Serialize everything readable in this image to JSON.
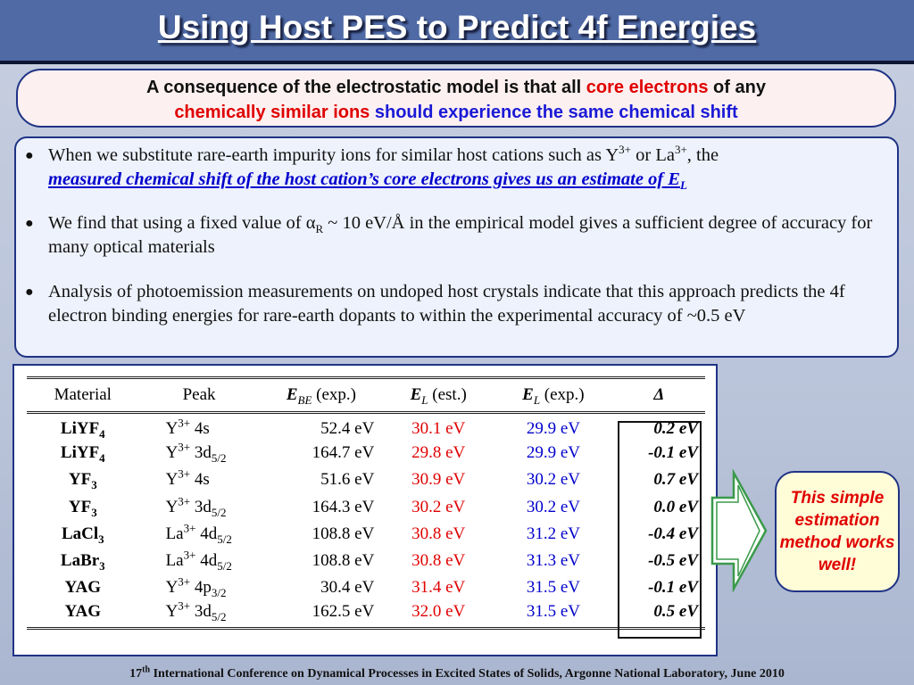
{
  "title": "Using Host PES to Predict 4f Energies",
  "callout": {
    "p1": "A consequence of the electrostatic model is that all ",
    "p2": "core electrons",
    "p3": " of any",
    "p4": "chemically similar ions",
    "p5": " should experience the same chemical shift"
  },
  "bullets": {
    "b1_t1": "When we substitute rare-earth impurity ions for similar host cations such as Y",
    "b1_sup1": "3+",
    "b1_t2": " or La",
    "b1_sup2": "3+",
    "b1_t3": ", the",
    "b1_emph": "measured chemical shift of the host cation’s core electrons gives us an estimate of E",
    "b1_emph_sub": "L",
    "b2_t1": "We find that using a fixed value of ",
    "b2_alpha": "α",
    "b2_sub": "R",
    "b2_t2": " ~ 10 eV/Å in the empirical model gives a sufficient degree of accuracy for many optical materials",
    "b3": "Analysis of photoemission measurements on undoped host crystals indicate that this approach predicts the 4f electron binding energies for rare-earth dopants to within the experimental accuracy of ~0.5 eV"
  },
  "table": {
    "headers": {
      "material": "Material",
      "peak": "Peak",
      "ebe_sym": "E",
      "ebe_sub": "BE",
      "ebe_rest": " (exp.)",
      "el_est_sym": "E",
      "el_est_sub": "L",
      "el_est_rest": " (est.)",
      "el_exp_sym": "E",
      "el_exp_sub": "L",
      "el_exp_rest": " (exp.)",
      "delta": "Δ"
    },
    "rows": [
      {
        "mat": "LiYF",
        "mat_sub": "4",
        "ion": "Y",
        "ion_sup": "3+",
        "orb": " 4s",
        "orb_sub": "",
        "ebe": "52.4 eV",
        "est": "30.1 eV",
        "exp": "29.9 eV",
        "delta": "0.2 eV"
      },
      {
        "mat": "LiYF",
        "mat_sub": "4",
        "ion": "Y",
        "ion_sup": "3+",
        "orb": " 3d",
        "orb_sub": "5/2",
        "ebe": "164.7 eV",
        "est": "29.8 eV",
        "exp": "29.9 eV",
        "delta": "-0.1 eV"
      },
      {
        "mat": "YF",
        "mat_sub": "3",
        "ion": "Y",
        "ion_sup": "3+",
        "orb": " 4s",
        "orb_sub": "",
        "ebe": "51.6 eV",
        "est": "30.9 eV",
        "exp": "30.2 eV",
        "delta": "0.7 eV"
      },
      {
        "mat": "YF",
        "mat_sub": "3",
        "ion": "Y",
        "ion_sup": "3+",
        "orb": " 3d",
        "orb_sub": "5/2",
        "ebe": "164.3 eV",
        "est": "30.2 eV",
        "exp": "30.2 eV",
        "delta": "0.0 eV"
      },
      {
        "mat": "LaCl",
        "mat_sub": "3",
        "ion": "La",
        "ion_sup": "3+",
        "orb": " 4d",
        "orb_sub": "5/2",
        "ebe": "108.8 eV",
        "est": "30.8 eV",
        "exp": "31.2 eV",
        "delta": "-0.4 eV"
      },
      {
        "mat": "LaBr",
        "mat_sub": "3",
        "ion": "La",
        "ion_sup": "3+",
        "orb": " 4d",
        "orb_sub": "5/2",
        "ebe": "108.8 eV",
        "est": "30.8 eV",
        "exp": "31.3 eV",
        "delta": "-0.5 eV"
      },
      {
        "mat": "YAG",
        "mat_sub": "",
        "ion": "Y",
        "ion_sup": "3+",
        "orb": " 4p",
        "orb_sub": "3/2",
        "ebe": "30.4 eV",
        "est": "31.4 eV",
        "exp": "31.5 eV",
        "delta": "-0.1 eV"
      },
      {
        "mat": "YAG",
        "mat_sub": "",
        "ion": "Y",
        "ion_sup": "3+",
        "orb": " 3d",
        "orb_sub": "5/2",
        "ebe": "162.5 eV",
        "est": "32.0 eV",
        "exp": "31.5 eV",
        "delta": "0.5 eV"
      }
    ]
  },
  "note": "This simple estimation method works well!",
  "footer": {
    "t1": "17",
    "sup": "th",
    "t2": " International Conference on Dynamical Processes in Excited States of Solids, Argonne National Laboratory, June 2010"
  },
  "colors": {
    "title_bg": "#4f6aa5",
    "accent_red": "#e00000",
    "accent_blue": "#0000cc",
    "arrow_green": "#3a9a4a"
  },
  "icons": {
    "bullet": "bullet-dot-icon",
    "arrow": "right-arrow-icon"
  }
}
